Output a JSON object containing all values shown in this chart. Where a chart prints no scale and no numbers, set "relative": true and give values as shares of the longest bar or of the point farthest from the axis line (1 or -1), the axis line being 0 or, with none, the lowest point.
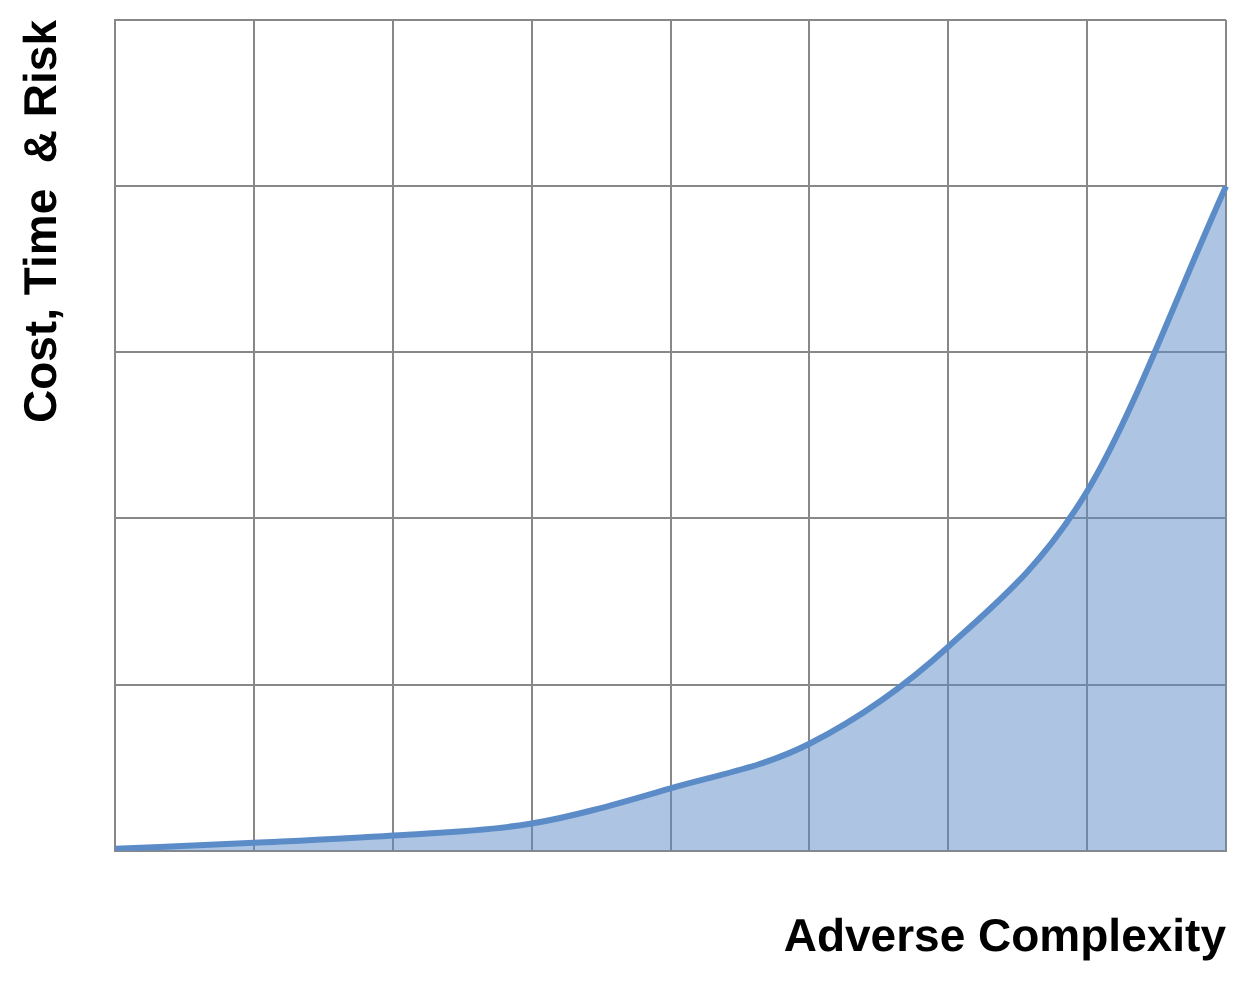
{
  "chart_data": {
    "type": "area",
    "xlabel": "Adverse Complexity",
    "ylabel": "Cost, Time  & Risk",
    "relative": true,
    "grid": true,
    "legend": false,
    "marker": "none",
    "categories": [
      null,
      null,
      null,
      null,
      null,
      null,
      null,
      null,
      null
    ],
    "series": [
      {
        "color": "#5b8cc8",
        "values": [
          0.003,
          0.012,
          0.023,
          0.041,
          0.094,
          0.161,
          0.307,
          0.541,
          1
        ]
      }
    ]
  }
}
